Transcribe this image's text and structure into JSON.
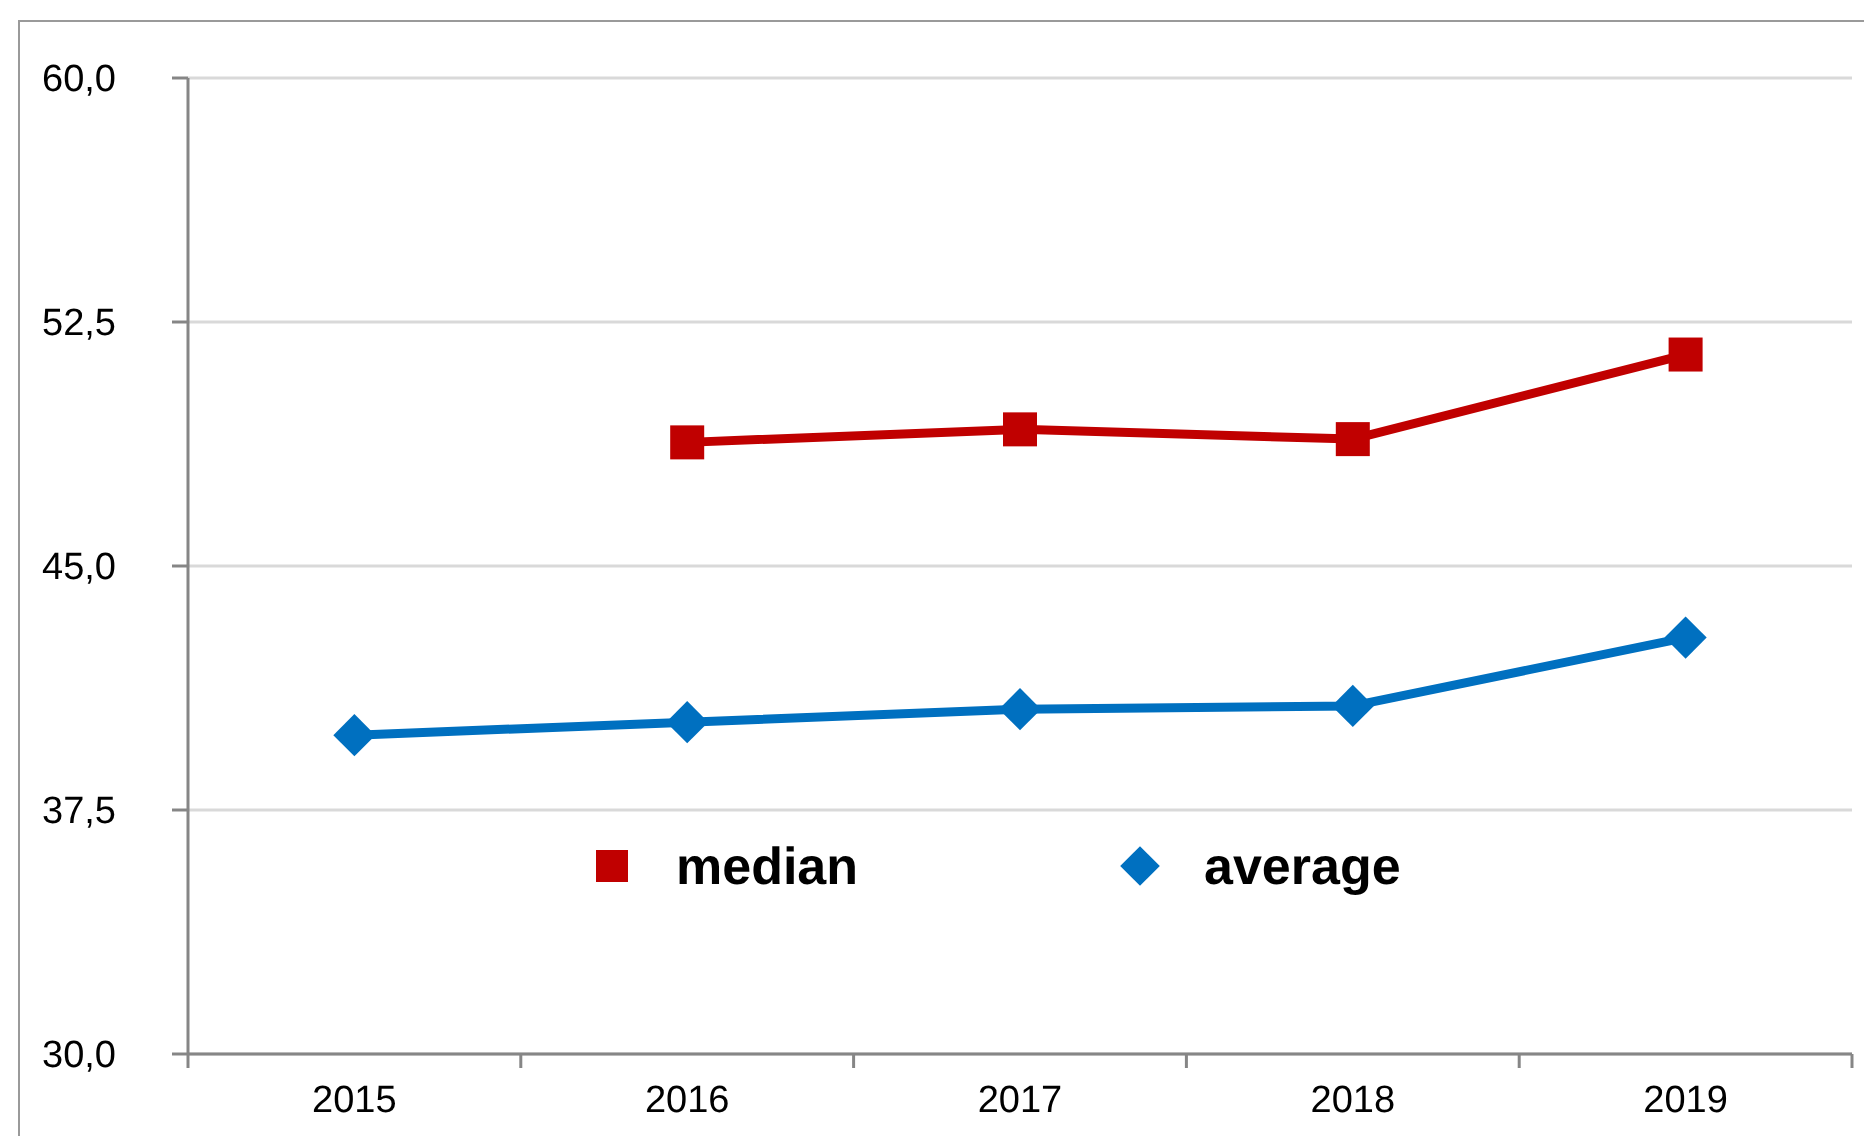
{
  "chart_data": {
    "type": "line",
    "categories": [
      "2015",
      "2016",
      "2017",
      "2018",
      "2019"
    ],
    "series": [
      {
        "name": "median",
        "color": "#c00000",
        "marker": "square",
        "values": [
          null,
          48.8,
          49.2,
          48.9,
          51.5
        ]
      },
      {
        "name": "average",
        "color": "#0070c0",
        "marker": "diamond",
        "values": [
          39.8,
          40.2,
          40.6,
          40.7,
          42.8
        ]
      }
    ],
    "ylim": [
      30,
      60
    ],
    "yticks": [
      {
        "value": 30,
        "label": "30,0"
      },
      {
        "value": 37.5,
        "label": "37,5"
      },
      {
        "value": 45,
        "label": "45,0"
      },
      {
        "value": 52.5,
        "label": "52,5"
      },
      {
        "value": 60,
        "label": "60,0"
      }
    ],
    "grid": "y",
    "legend": "bottom",
    "line_style": "solid"
  }
}
